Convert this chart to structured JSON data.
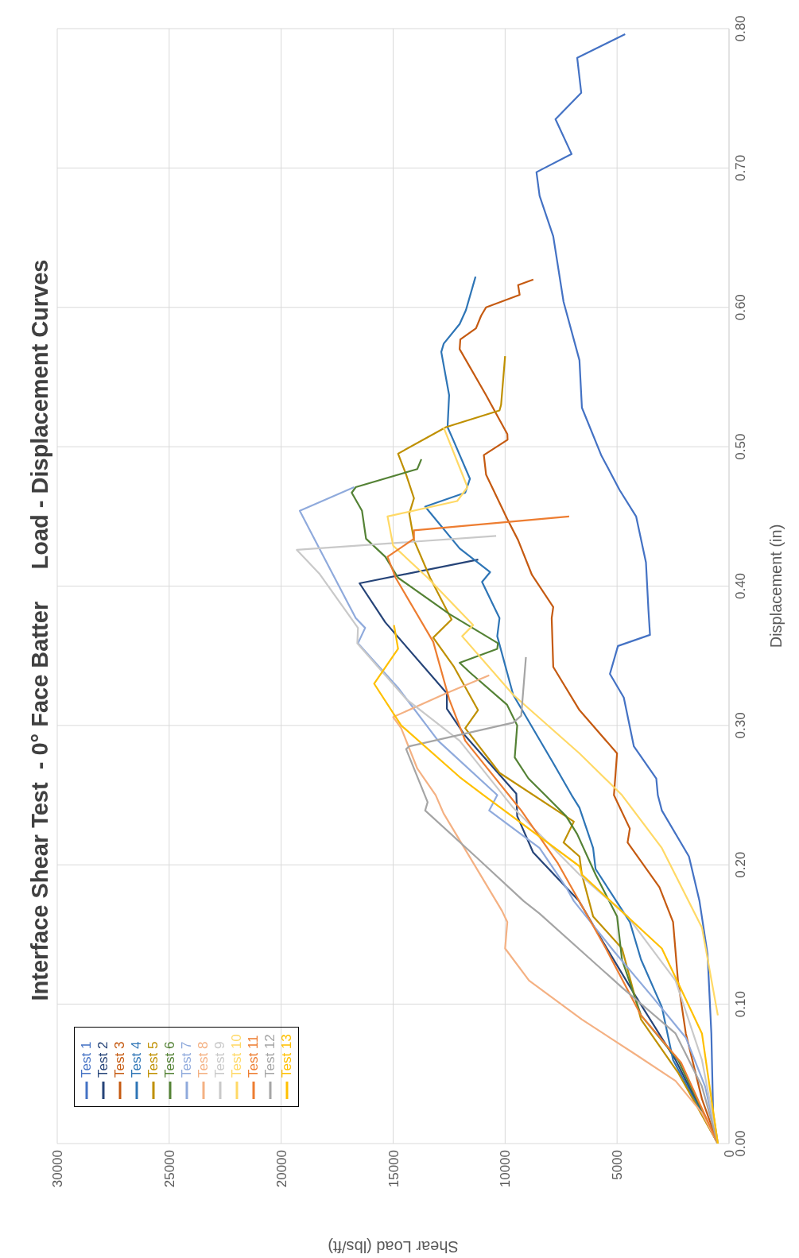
{
  "chart_data": {
    "type": "line",
    "title": "Interface Shear Test  - 0° Face Batter     Load - Displacement Curves",
    "xlabel": "Shear Load (lbs/ft)",
    "ylabel": "Displacement (in)",
    "xlim": [
      30000,
      0
    ],
    "xticks": [
      30000,
      25000,
      20000,
      15000,
      10000,
      5000,
      0
    ],
    "ylim": [
      0,
      0.8
    ],
    "yticks": [
      {
        "value": 0,
        "label": "0.00"
      },
      {
        "value": 0.1,
        "label": "0.10"
      },
      {
        "value": 0.2,
        "label": "0.20"
      },
      {
        "value": 0.3,
        "label": "0.30"
      },
      {
        "value": 0.4,
        "label": "0.40"
      },
      {
        "value": 0.5,
        "label": "0.50"
      },
      {
        "value": 0.6,
        "label": "0.60"
      },
      {
        "value": 0.7,
        "label": "0.70"
      },
      {
        "value": 0.8,
        "label": "0.80"
      }
    ],
    "grid": true,
    "legend": "bottom left",
    "marker": "none",
    "line_style": "solid",
    "series": [
      {
        "name": "Test 1",
        "color": "#4472c4",
        "values": [
          0,
          0.022,
          0.079,
          0.136,
          0.174,
          0.206,
          0.239,
          0.25,
          0.262,
          0.285,
          0.32,
          0.337,
          0.357,
          0.365,
          0.383,
          0.417,
          0.45,
          0.469,
          0.494,
          0.528,
          0.562,
          0.604,
          0.651,
          0.68,
          0.697,
          0.71,
          0.735,
          0.754,
          0.779,
          0.796
        ],
        "x": [
          500,
          710,
          790,
          960,
          1320,
          1790,
          3000,
          3180,
          3250,
          4250,
          4700,
          5320,
          4960,
          3530,
          3600,
          3710,
          4150,
          4890,
          5710,
          6570,
          6680,
          7390,
          7850,
          8460,
          8600,
          7030,
          7750,
          6600,
          6780,
          4640
        ]
      },
      {
        "name": "Test 2",
        "color": "#264478",
        "values": [
          0,
          0.06,
          0.106,
          0.144,
          0.174,
          0.209,
          0.235,
          0.251,
          0.293,
          0.312,
          0.323,
          0.374,
          0.402,
          0.419
        ],
        "x": [
          500,
          2390,
          4180,
          5600,
          6700,
          8750,
          9460,
          9500,
          11800,
          12600,
          12600,
          15350,
          16500,
          11200
        ]
      },
      {
        "name": "Test 3",
        "color": "#c55a11",
        "values": [
          0,
          0.032,
          0.079,
          0.117,
          0.159,
          0.184,
          0.216,
          0.226,
          0.25,
          0.28,
          0.311,
          0.342,
          0.377,
          0.385,
          0.408,
          0.433,
          0.448,
          0.48,
          0.494,
          0.505,
          0.509,
          0.537,
          0.57,
          0.577,
          0.585,
          0.594,
          0.6,
          0.609,
          0.616,
          0.62
        ],
        "x": [
          500,
          1210,
          1930,
          2280,
          2500,
          3110,
          4530,
          4430,
          5140,
          5000,
          6680,
          7850,
          7920,
          7850,
          8800,
          9420,
          9900,
          10850,
          10950,
          9890,
          9900,
          10850,
          12030,
          12000,
          11300,
          11070,
          10850,
          9350,
          9420,
          8740
        ]
      },
      {
        "name": "Test 4",
        "color": "#2e75b6",
        "values": [
          0,
          0.06,
          0.098,
          0.132,
          0.159,
          0.197,
          0.212,
          0.241,
          0.25,
          0.273,
          0.322,
          0.364,
          0.377,
          0.403,
          0.41,
          0.427,
          0.457,
          0.467,
          0.477,
          0.505,
          0.514,
          0.537,
          0.568,
          0.574,
          0.588,
          0.598,
          0.622
        ],
        "x": [
          500,
          2500,
          3000,
          3930,
          4430,
          5960,
          6070,
          6680,
          7030,
          7850,
          9640,
          10350,
          10250,
          11030,
          10670,
          12030,
          13570,
          11780,
          11570,
          12320,
          12570,
          12500,
          12850,
          12740,
          12030,
          11750,
          11320
        ]
      },
      {
        "name": "Test 5",
        "color": "#bf9000",
        "values": [
          0,
          0.051,
          0.089,
          0.125,
          0.14,
          0.163,
          0.193,
          0.206,
          0.216,
          0.231,
          0.266,
          0.298,
          0.311,
          0.342,
          0.363,
          0.376,
          0.406,
          0.433,
          0.452,
          0.463,
          0.48,
          0.495,
          0.514,
          0.526,
          0.53,
          0.565
        ],
        "x": [
          500,
          2280,
          3930,
          4530,
          4780,
          6070,
          6570,
          6680,
          7390,
          6930,
          10250,
          11780,
          11210,
          12280,
          13210,
          12390,
          13350,
          14070,
          14280,
          14070,
          14420,
          14780,
          12640,
          10250,
          10180,
          10000
        ]
      },
      {
        "name": "Test 6",
        "color": "#548235",
        "values": [
          0,
          0.06,
          0.092,
          0.132,
          0.163,
          0.193,
          0.222,
          0.235,
          0.25,
          0.262,
          0.277,
          0.3,
          0.315,
          0.338,
          0.345,
          0.355,
          0.359,
          0.38,
          0.406,
          0.421,
          0.434,
          0.454,
          0.467,
          0.471,
          0.484,
          0.491
        ],
        "x": [
          500,
          2280,
          3930,
          4780,
          5000,
          5960,
          6780,
          7280,
          8210,
          8960,
          9570,
          9460,
          9920,
          11570,
          12030,
          10350,
          10320,
          12490,
          14780,
          15350,
          16210,
          16390,
          16850,
          16670,
          13920,
          13740
        ]
      },
      {
        "name": "Test 7",
        "color": "#8faadc",
        "values": [
          0,
          0.041,
          0.076,
          0.106,
          0.138,
          0.174,
          0.184,
          0.212,
          0.239,
          0.25,
          0.289,
          0.327,
          0.359,
          0.37,
          0.377,
          0.421,
          0.454,
          0.471
        ],
        "x": [
          500,
          1070,
          1930,
          3460,
          5140,
          6930,
          7280,
          8460,
          10710,
          10350,
          12990,
          14780,
          16570,
          16250,
          16670,
          18100,
          19170,
          16740
        ]
      },
      {
        "name": "Test 8",
        "color": "#f4b183",
        "values": [
          0,
          0.022,
          0.045,
          0.064,
          0.089,
          0.117,
          0.14,
          0.159,
          0.167,
          0.237,
          0.25,
          0.269,
          0.298,
          0.306,
          0.323,
          0.336
        ],
        "x": [
          500,
          1210,
          2390,
          4180,
          6570,
          8930,
          10000,
          9900,
          10140,
          12750,
          13100,
          13920,
          14640,
          15000,
          12640,
          10710
        ]
      },
      {
        "name": "Test 9",
        "color": "#c9c9c9",
        "values": [
          0,
          0.06,
          0.117,
          0.163,
          0.193,
          0.241,
          0.289,
          0.319,
          0.359,
          0.37,
          0.409,
          0.426,
          0.436
        ],
        "x": [
          500,
          1210,
          2390,
          4530,
          6680,
          9640,
          12030,
          14420,
          16600,
          16570,
          18300,
          19300,
          10400
        ]
      },
      {
        "name": "Test 10",
        "color": "#ffd966",
        "values": [
          0.092,
          0.155,
          0.212,
          0.25,
          0.28,
          0.322,
          0.364,
          0.372,
          0.406,
          0.429,
          0.45,
          0.461,
          0.471,
          0.514
        ],
        "x": [
          500,
          1210,
          3000,
          4780,
          6680,
          9640,
          11920,
          11430,
          13460,
          15000,
          15250,
          12140,
          11680,
          12750
        ]
      },
      {
        "name": "Test 11",
        "color": "#ed7d31",
        "values": [
          0,
          0.058,
          0.092,
          0.14,
          0.201,
          0.239,
          0.289,
          0.319,
          0.36,
          0.406,
          0.421,
          0.434,
          0.44,
          0.45
        ],
        "x": [
          500,
          2140,
          3930,
          5500,
          7640,
          9280,
          11780,
          12500,
          13210,
          14890,
          15250,
          14070,
          14070,
          7140
        ]
      },
      {
        "name": "Test 12",
        "color": "#a5a5a5",
        "values": [
          0,
          0.041,
          0.079,
          0.112,
          0.165,
          0.174,
          0.206,
          0.239,
          0.245,
          0.283,
          0.285,
          0.302,
          0.307,
          0.349
        ],
        "x": [
          500,
          1210,
          2390,
          4780,
          8460,
          9170,
          11320,
          13570,
          13460,
          14420,
          14280,
          9640,
          9280,
          9070
        ]
      },
      {
        "name": "Test 13",
        "color": "#ffc000",
        "values": [
          0,
          0.079,
          0.14,
          0.193,
          0.199,
          0.25,
          0.263,
          0.3,
          0.33,
          0.355,
          0.372
        ],
        "x": [
          500,
          1210,
          3000,
          6570,
          6680,
          10960,
          12030,
          14640,
          15850,
          14780,
          14960
        ]
      }
    ]
  }
}
